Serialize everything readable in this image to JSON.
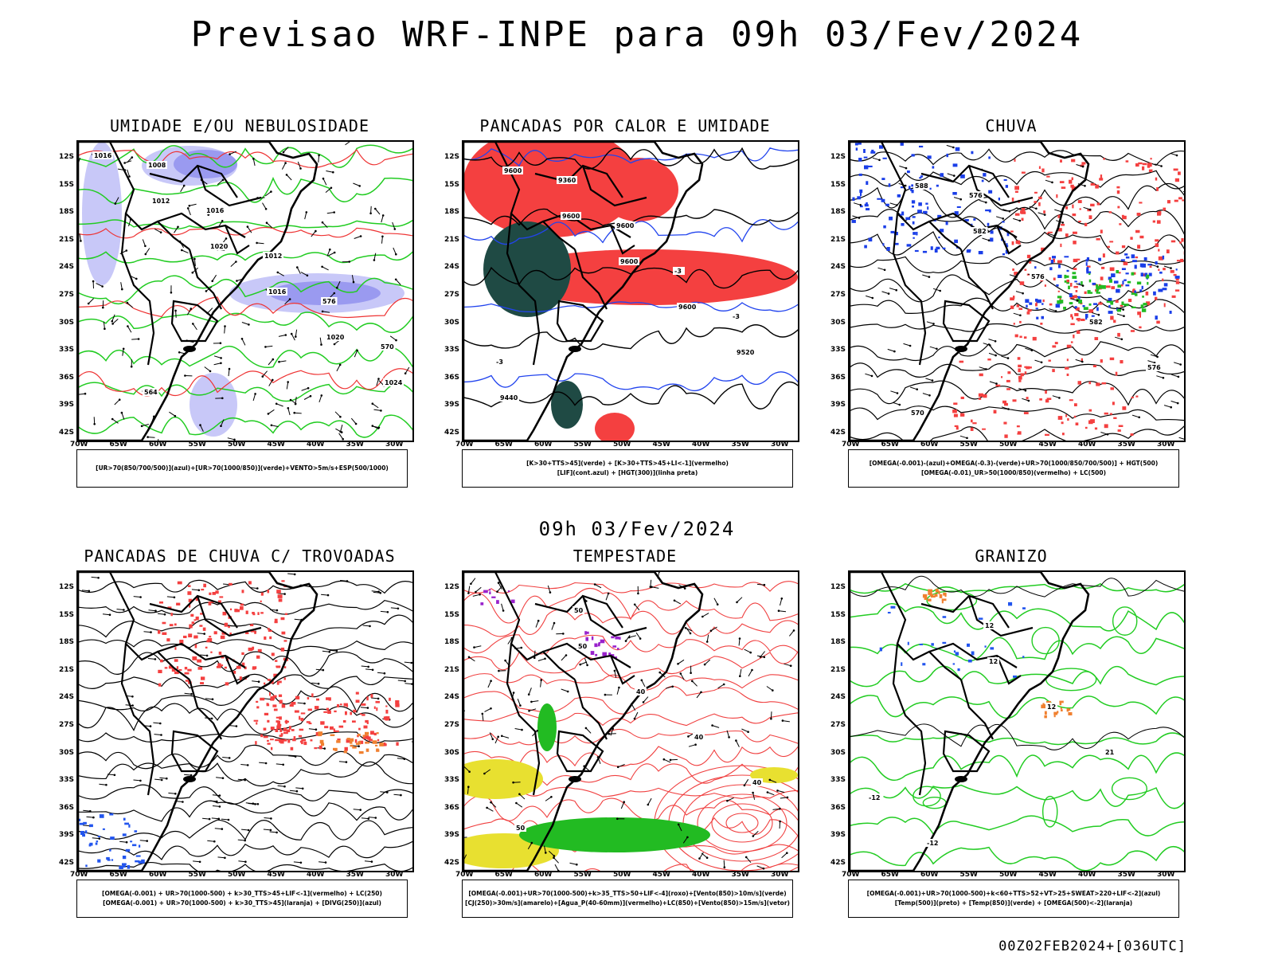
{
  "header": {
    "title": "Previsao WRF-INPE  para 09h 03/Fev/2024"
  },
  "mid_label": "09h 03/Fev/2024",
  "footer": {
    "run_label": "00Z02FEB2024+[036UTC]"
  },
  "axes": {
    "lat_labels": [
      "12S",
      "15S",
      "18S",
      "21S",
      "24S",
      "27S",
      "30S",
      "33S",
      "36S",
      "39S",
      "42S"
    ],
    "lon_labels": [
      "70W",
      "65W",
      "60W",
      "55W",
      "50W",
      "45W",
      "40W",
      "35W",
      "30W"
    ]
  },
  "panels": [
    {
      "title": "UMIDADE E/OU NEBULOSIDADE",
      "legend": [
        "[UR>70(850/700/500)](azul)+[UR>70(1000/850)](verde)+VENTO>5m/s+ESP(500/1000)"
      ],
      "contour_labels": [
        "1016",
        "1012",
        "1020",
        "1016",
        "1020",
        "1024",
        "1008",
        "1016",
        "1012",
        "576",
        "570",
        "564"
      ],
      "colors": {
        "fill_a": "#9a9af0",
        "fill_b": "#c8c8f8",
        "line_a": "#22cc22",
        "line_b": "#ee3333",
        "line_c": "#000000"
      }
    },
    {
      "title": "PANCADAS POR CALOR E UMIDADE",
      "legend": [
        "[K>30+TTS>45](verde) + [K>30+TTS>45+LI<-1](vermelho)",
        "[LIF](cont.azul) + [HGT(300)](linha preta)"
      ],
      "contour_labels": [
        "9600",
        "9600",
        "9600",
        "9600",
        "9520",
        "9440",
        "9360",
        "9600",
        "-3",
        "-3",
        "-3"
      ],
      "colors": {
        "fill_a": "#f44040",
        "fill_b": "#1f4a44",
        "line_a": "#2244ee",
        "line_b": "#000000"
      }
    },
    {
      "title": "CHUVA",
      "legend": [
        "[OMEGA(-0.001)-(azul)+OMEGA(-0.3)-(verde)+UR>70(1000/850/700/500)] + HGT(500)",
        "[OMEGA(-0.01)_UR>50(1000/850)(vermelho) + LC(500)"
      ],
      "contour_labels": [
        "588",
        "582",
        "576",
        "582",
        "576",
        "570",
        "576"
      ],
      "colors": {
        "fill_a": "#f44040",
        "fill_b": "#1a3ee8",
        "fill_c": "#22bb22",
        "line_a": "#000000"
      }
    },
    {
      "title": "PANCADAS DE CHUVA C/ TROVOADAS",
      "legend": [
        "[OMEGA(-0.001) + UR>70(1000-500) + k>30_TTS>45+LIF<-1](vermelho) + LC(250)",
        "[OMEGA(-0.001) + UR>70(1000-500) + k>30_TTS>45](laranja) + [DIVG(250)](azul)"
      ],
      "contour_labels": [],
      "colors": {
        "fill_a": "#f44040",
        "fill_b": "#f08030",
        "fill_c": "#2255ee",
        "line_a": "#000000"
      }
    },
    {
      "title": "TEMPESTADE",
      "legend": [
        "[OMEGA(-0.001)+UR>70(1000-500)+k>35_TTS>50+LIF<-4](roxo)+[Vento(850)>10m/s](verde)",
        "[CJ(250)>30m/s](amarelo)+[Agua_P(40-60mm)](vermelho)+LC(850)+[Vento(850)>15m/s](vetor)"
      ],
      "contour_labels": [
        "50",
        "40",
        "40",
        "40",
        "50",
        "50"
      ],
      "colors": {
        "fill_a": "#e8e030",
        "fill_b": "#22bb22",
        "fill_c": "#9922cc",
        "line_a": "#f04040"
      }
    },
    {
      "title": "GRANIZO",
      "legend": [
        "[OMEGA(-0.001)+UR>70(1000-500)+k<60+TTS>52+VT>25+SWEAT>220+LIF<-2](azul)",
        "[Temp(500)](preto) + [Temp(850)](verde) + [OMEGA(500)<-2](laranja)"
      ],
      "contour_labels": [
        "12",
        "12",
        "21",
        "-12",
        "-12",
        "12"
      ],
      "colors": {
        "fill_a": "#f08030",
        "fill_b": "#2255ee",
        "line_a": "#22cc22",
        "line_b": "#000000"
      }
    }
  ]
}
